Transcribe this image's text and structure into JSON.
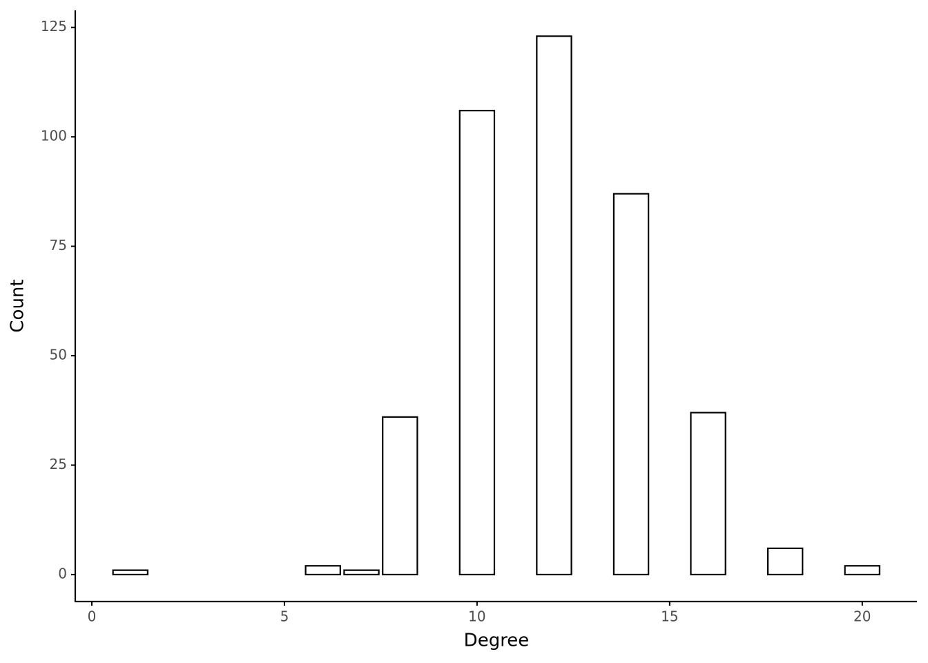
{
  "chart_data": {
    "type": "bar",
    "x_label": "Degree",
    "y_label": "Count",
    "x": [
      1,
      6,
      7,
      8,
      10,
      12,
      14,
      16,
      18,
      20
    ],
    "values": [
      1,
      2,
      1,
      36,
      106,
      123,
      87,
      37,
      6,
      2
    ],
    "fill": "#ffffff",
    "color": "#000000",
    "xlim": [
      -0.43,
      21.42
    ],
    "ylim": [
      -6.16,
      128.9
    ],
    "xticks": [
      0,
      5,
      10,
      15,
      20
    ],
    "yticks": [
      0,
      25,
      50,
      75,
      100,
      125
    ],
    "grid": false
  }
}
